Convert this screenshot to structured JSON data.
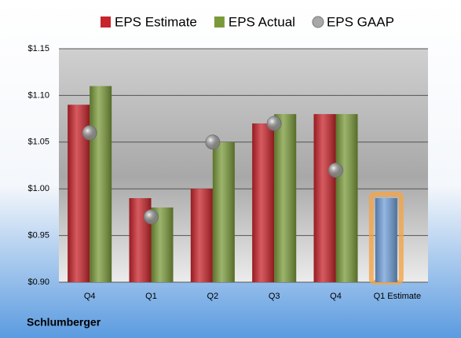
{
  "chart_data": {
    "type": "bar",
    "title": "Schlumberger",
    "categories": [
      "Q4",
      "Q1",
      "Q2",
      "Q3",
      "Q4",
      "Q1 Estimate"
    ],
    "series": [
      {
        "name": "EPS Estimate",
        "color": "#c8242b",
        "values": [
          1.09,
          0.99,
          1.0,
          1.07,
          1.08,
          0.99
        ],
        "colors": [
          "#c8242b",
          "#c8242b",
          "#c8242b",
          "#c8242b",
          "#c8242b",
          "#6f9fd8"
        ],
        "outline_colors": [
          null,
          null,
          null,
          null,
          null,
          "#f3a54a"
        ]
      },
      {
        "name": "EPS Actual",
        "color": "#7a9a3a",
        "values": [
          1.11,
          0.98,
          1.05,
          1.08,
          1.08,
          null
        ]
      },
      {
        "name": "EPS GAAP",
        "color": "#a8a8a8",
        "type": "scatter",
        "values": [
          1.06,
          0.97,
          1.05,
          1.07,
          1.02,
          null
        ]
      }
    ],
    "ylim": [
      0.9,
      1.15
    ],
    "yticks": [
      {
        "value": 0.9,
        "label": "$0.90"
      },
      {
        "value": 0.95,
        "label": "$0.95"
      },
      {
        "value": 1.0,
        "label": "$1.00"
      },
      {
        "value": 1.05,
        "label": "$1.05"
      },
      {
        "value": 1.1,
        "label": "$1.10"
      },
      {
        "value": 1.15,
        "label": "$1.15"
      }
    ],
    "grid": true
  }
}
